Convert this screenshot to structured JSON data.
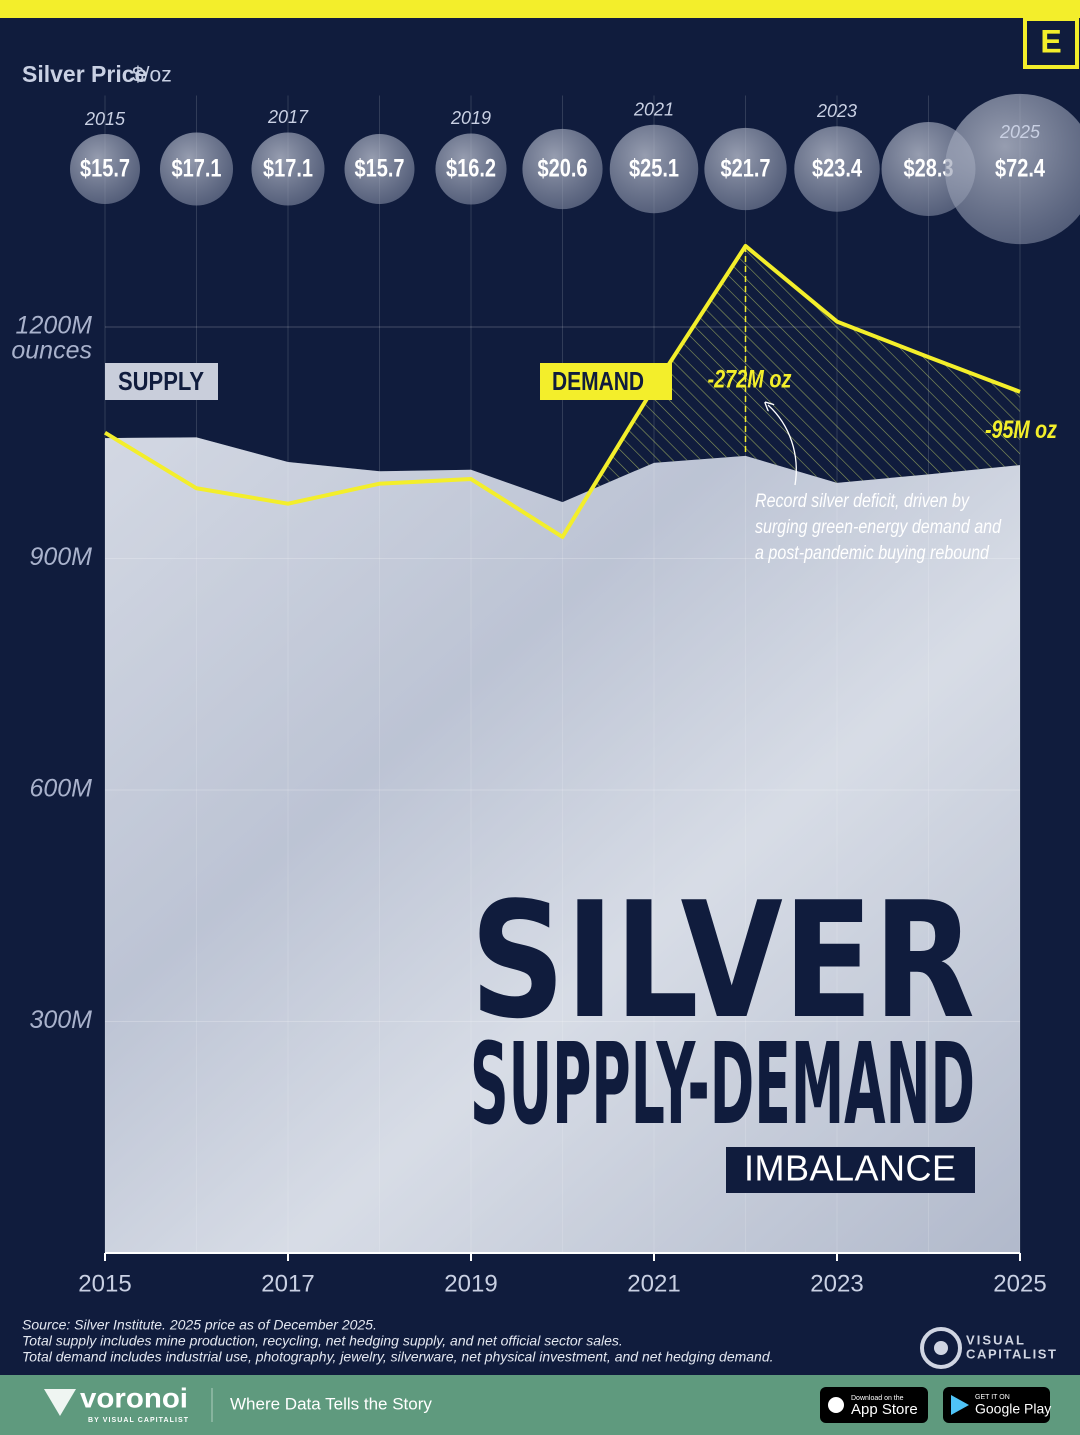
{
  "chart_data": {
    "type": "area",
    "title": "SILVER",
    "subtitle": "SUPPLY-DEMAND",
    "tag": "IMBALANCE",
    "price_label": "Silver Price",
    "price_unit": "$/oz",
    "x": [
      2015,
      2016,
      2017,
      2018,
      2019,
      2020,
      2021,
      2022,
      2023,
      2024,
      2025
    ],
    "xlim": [
      2015,
      2025
    ],
    "xticks": [
      2015,
      2017,
      2019,
      2021,
      2023,
      2025
    ],
    "ylim": [
      0,
      1500
    ],
    "yticks": [
      {
        "value": 300,
        "label": "300M"
      },
      {
        "value": 600,
        "label": "600M"
      },
      {
        "value": 900,
        "label": "900M"
      },
      {
        "value": 1200,
        "label": "1200M"
      }
    ],
    "y_unit": "ounces",
    "grid": true,
    "series": [
      {
        "name": "SUPPLY",
        "color": "#c9cedb",
        "values": [
          1056,
          1057,
          1025,
          1013,
          1015,
          973,
          1024,
          1033,
          998,
          1009,
          1021
        ]
      },
      {
        "name": "DEMAND",
        "color": "#f3ee2b",
        "values": [
          1063,
          991,
          971,
          997,
          1003,
          928,
          1122,
          1305,
          1207,
          1161,
          1116
        ]
      }
    ],
    "price": {
      "values": [
        15.7,
        17.1,
        17.1,
        15.7,
        16.2,
        20.6,
        25.1,
        21.7,
        23.4,
        28.3,
        72.4
      ],
      "value_labels": [
        "$15.7",
        "$17.1",
        "$17.1",
        "$15.7",
        "$16.2",
        "$20.6",
        "$25.1",
        "$21.7",
        "$23.4",
        "$28.3",
        "$72.4"
      ]
    },
    "deficits": [
      {
        "x": 2022,
        "value": -272,
        "label": "-272M oz"
      },
      {
        "x": 2025,
        "value": -95,
        "label": "-95M oz"
      }
    ],
    "annotation": [
      "Record silver deficit, driven by",
      "surging green-energy demand and",
      "a post-pandemic buying rebound"
    ],
    "source": [
      "Source: Silver Institute. 2025 price as of December 2025.",
      "Total supply includes mine production, recycling, net hedging supply, and net official sector sales.",
      "Total demand includes industrial use, photography, jewelry, silverware, net physical investment, and net hedging demand."
    ]
  },
  "branding": {
    "corner_logo": "E",
    "vc_logo": [
      "VISUAL",
      "CAPITALIST"
    ],
    "footer": {
      "brand": "voronoi",
      "brand_sub": "BY VISUAL CAPITALIST",
      "tagline": "Where Data Tells the Story",
      "app_store": [
        "Download on the",
        "App Store"
      ],
      "google_play": [
        "GET IT ON",
        "Google Play"
      ]
    }
  }
}
